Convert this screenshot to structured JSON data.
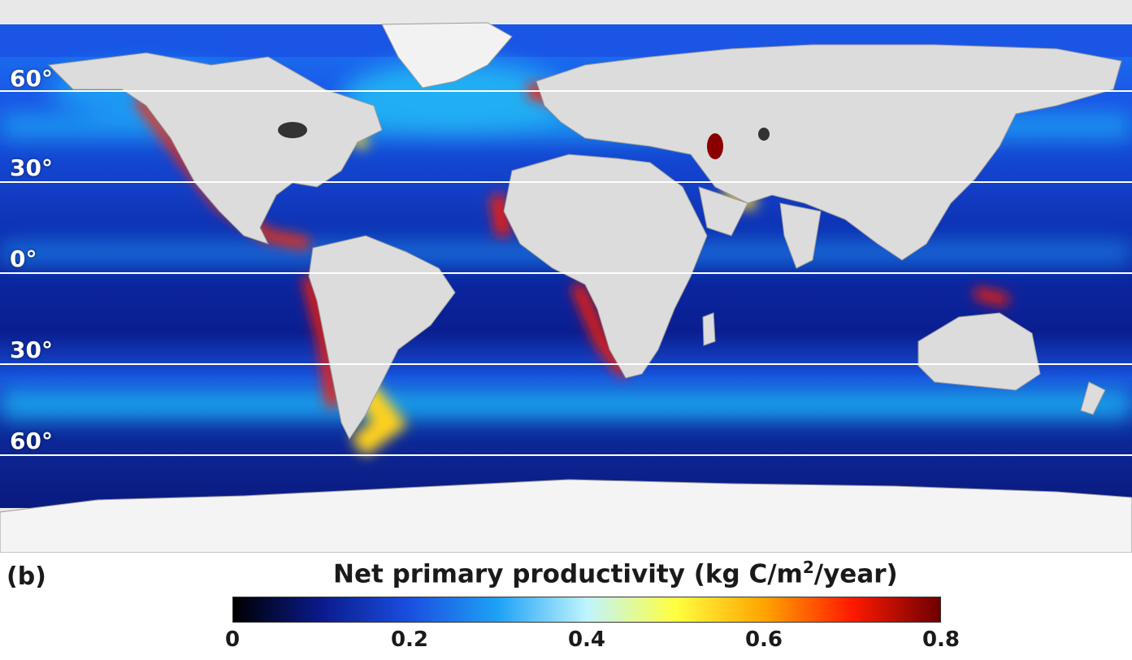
{
  "panel_label": "(b)",
  "colorbar": {
    "title_prefix": "Net primary productivity (kg C/m",
    "title_sup": "2",
    "title_suffix": "/year)",
    "ticks": [
      "0",
      "0.2",
      "0.4",
      "0.6",
      "0.8"
    ],
    "tick_values": [
      0,
      0.2,
      0.4,
      0.6,
      0.8
    ],
    "range": [
      0,
      0.8
    ],
    "stops": [
      "#000000",
      "#0a1a8c",
      "#1a4fe0",
      "#1fa2f5",
      "#bff4ff",
      "#ffff40",
      "#ffa500",
      "#ff1a00",
      "#6e0000"
    ]
  },
  "latitude_labels": [
    {
      "label": "60°",
      "lat": 60
    },
    {
      "label": "30°",
      "lat": 30
    },
    {
      "label": "0°",
      "lat": 0
    },
    {
      "label": "30°",
      "lat": -30
    },
    {
      "label": "60°",
      "lat": -60
    }
  ],
  "colors": {
    "ocean_deep": "#0a1a8c",
    "ocean_mid": "#1a4fe0",
    "ocean_light": "#1fa2f5",
    "land": "#dcdcdc",
    "ice": "#f4f4f4",
    "high": "#d01a00",
    "med": "#ffd21f"
  }
}
